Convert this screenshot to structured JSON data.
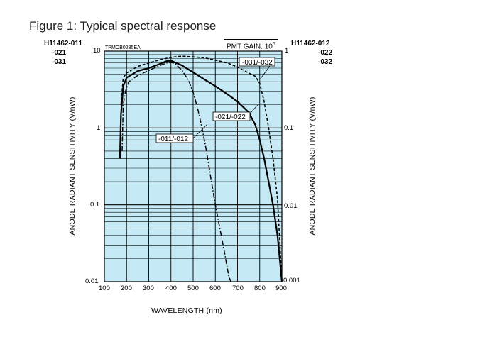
{
  "figure": {
    "title": "Figure 1: Typical spectral response",
    "code": "TPMOB0235EA",
    "left_models": [
      "H11462-011",
      "-021",
      "-031"
    ],
    "right_models": [
      "H11462-012",
      "-022",
      "-032"
    ]
  },
  "gain_box": {
    "label": "PMT GAIN: 10",
    "exponent": "5"
  },
  "colors": {
    "plot_bg": "#c6eaf5",
    "grid": "#000000",
    "curve": "#000000"
  },
  "chart_data": {
    "type": "line",
    "title": "Figure 1: Typical spectral response",
    "xlabel": "WAVELENGTH (nm)",
    "ylabel_left": "ANODE RADIANT SENSITIVITY (V/nW)",
    "ylabel_right": "ANODE RADIANT SENSITIVITY (V/nW)",
    "xlim": [
      100,
      900
    ],
    "ylim_left": [
      0.01,
      10
    ],
    "ylim_right": [
      0.001,
      1
    ],
    "yscale": "log",
    "grid": true,
    "x_ticks": [
      "100",
      "200",
      "300",
      "400",
      "500",
      "600",
      "700",
      "800",
      "900"
    ],
    "y_ticks_left": [
      "10",
      "1",
      "0.1",
      "0.01"
    ],
    "y_ticks_right": [
      "1",
      "0.1",
      "0.01",
      "0.001"
    ],
    "series": [
      {
        "name": "-011/-012",
        "style": "dash-dot",
        "x": [
          180,
          185,
          195,
          210,
          250,
          300,
          350,
          380,
          400,
          420,
          450,
          480,
          500,
          520,
          540,
          560,
          580,
          600,
          620,
          640,
          660,
          670
        ],
        "y": [
          0.5,
          2.0,
          3.0,
          4.0,
          4.8,
          5.6,
          6.5,
          7.0,
          7.2,
          6.8,
          5.6,
          4.1,
          2.9,
          1.8,
          1.0,
          0.5,
          0.22,
          0.1,
          0.05,
          0.025,
          0.012,
          0.01
        ]
      },
      {
        "name": "-021/-022",
        "style": "solid",
        "x": [
          170,
          175,
          185,
          200,
          250,
          300,
          350,
          380,
          400,
          450,
          500,
          550,
          600,
          650,
          700,
          750,
          780,
          800,
          820,
          840,
          860,
          880,
          900
        ],
        "y": [
          0.4,
          1.5,
          3.5,
          4.5,
          5.5,
          6.0,
          6.8,
          7.4,
          7.5,
          6.5,
          5.3,
          4.3,
          3.5,
          2.8,
          2.2,
          1.6,
          1.1,
          0.7,
          0.4,
          0.2,
          0.1,
          0.04,
          0.01
        ]
      },
      {
        "name": "-031/-032",
        "style": "dashed",
        "x": [
          175,
          185,
          200,
          250,
          300,
          350,
          400,
          450,
          500,
          550,
          600,
          650,
          700,
          750,
          780,
          800,
          820,
          840,
          860,
          880,
          900
        ],
        "y": [
          2.0,
          4.5,
          5.2,
          6.3,
          7.0,
          7.7,
          8.3,
          8.6,
          8.4,
          8.2,
          7.6,
          7.1,
          6.2,
          5.2,
          4.7,
          3.8,
          2.2,
          1.0,
          0.4,
          0.12,
          0.01
        ]
      }
    ]
  }
}
